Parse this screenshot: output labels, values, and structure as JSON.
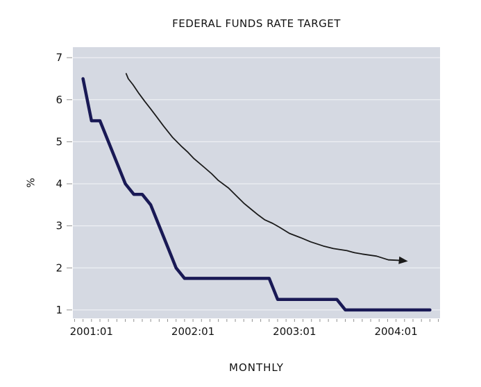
{
  "chart": {
    "title": "FEDERAL FUNDS RATE TARGET",
    "xlabel": "MONTHLY",
    "ylabel": "%"
  },
  "chart_data": {
    "type": "line",
    "title": "FEDERAL FUNDS RATE TARGET",
    "xlabel": "MONTHLY",
    "ylabel": "%",
    "grid": "horizontal-only",
    "legend": "none",
    "plot_bg_color": "#d5d9e2",
    "gridline_color": "#eef0f4",
    "tick_color": "#8f8f8f",
    "ylim": [
      0.8,
      7.25
    ],
    "y_ticks": [
      7,
      6,
      5,
      4,
      3,
      2,
      1
    ],
    "xlim_months_from_2001_01": [
      -2.2,
      41.2
    ],
    "x_minor_tick_every_months": 1,
    "x_tick_labels": [
      {
        "label": "2001:01",
        "month_index": 0
      },
      {
        "label": "2002:01",
        "month_index": 12
      },
      {
        "label": "2003:01",
        "month_index": 24
      },
      {
        "label": "2004:01",
        "month_index": 36
      }
    ],
    "series": [
      {
        "name": "federal-funds-rate-target",
        "style": "thick-step-line",
        "color": "#191955",
        "stroke_width": 4.5,
        "points": [
          {
            "month": "2000:12",
            "value": 6.5
          },
          {
            "month": "2001:01",
            "value": 5.5
          },
          {
            "month": "2001:02",
            "value": 5.5
          },
          {
            "month": "2001:03",
            "value": 5.0
          },
          {
            "month": "2001:04",
            "value": 4.5
          },
          {
            "month": "2001:05",
            "value": 4.0
          },
          {
            "month": "2001:06",
            "value": 3.75
          },
          {
            "month": "2001:07",
            "value": 3.75
          },
          {
            "month": "2001:08",
            "value": 3.5
          },
          {
            "month": "2001:09",
            "value": 3.0
          },
          {
            "month": "2001:10",
            "value": 2.5
          },
          {
            "month": "2001:11",
            "value": 2.0
          },
          {
            "month": "2001:12",
            "value": 1.75
          },
          {
            "month": "2002:01",
            "value": 1.75
          },
          {
            "month": "2002:02",
            "value": 1.75
          },
          {
            "month": "2002:03",
            "value": 1.75
          },
          {
            "month": "2002:04",
            "value": 1.75
          },
          {
            "month": "2002:05",
            "value": 1.75
          },
          {
            "month": "2002:06",
            "value": 1.75
          },
          {
            "month": "2002:07",
            "value": 1.75
          },
          {
            "month": "2002:08",
            "value": 1.75
          },
          {
            "month": "2002:09",
            "value": 1.75
          },
          {
            "month": "2002:10",
            "value": 1.75
          },
          {
            "month": "2002:11",
            "value": 1.25
          },
          {
            "month": "2002:12",
            "value": 1.25
          },
          {
            "month": "2003:01",
            "value": 1.25
          },
          {
            "month": "2003:02",
            "value": 1.25
          },
          {
            "month": "2003:03",
            "value": 1.25
          },
          {
            "month": "2003:04",
            "value": 1.25
          },
          {
            "month": "2003:05",
            "value": 1.25
          },
          {
            "month": "2003:06",
            "value": 1.25
          },
          {
            "month": "2003:07",
            "value": 1.0
          },
          {
            "month": "2003:08",
            "value": 1.0
          },
          {
            "month": "2003:09",
            "value": 1.0
          },
          {
            "month": "2003:10",
            "value": 1.0
          },
          {
            "month": "2003:11",
            "value": 1.0
          },
          {
            "month": "2003:12",
            "value": 1.0
          },
          {
            "month": "2004:01",
            "value": 1.0
          },
          {
            "month": "2004:02",
            "value": 1.0
          },
          {
            "month": "2004:03",
            "value": 1.0
          },
          {
            "month": "2004:04",
            "value": 1.0
          },
          {
            "month": "2004:05",
            "value": 1.0
          }
        ]
      },
      {
        "name": "downward-trend-annotation-arrow",
        "style": "thin-curve-with-arrowhead",
        "color": "#1a1a1a",
        "stroke_width": 1.8,
        "points_month_value": [
          [
            4.1,
            6.62
          ],
          [
            4.35,
            6.5
          ],
          [
            4.9,
            6.36
          ],
          [
            5.6,
            6.15
          ],
          [
            6.3,
            5.96
          ],
          [
            7.0,
            5.78
          ],
          [
            7.6,
            5.62
          ],
          [
            8.5,
            5.38
          ],
          [
            9.6,
            5.1
          ],
          [
            10.7,
            4.88
          ],
          [
            11.4,
            4.75
          ],
          [
            12.1,
            4.6
          ],
          [
            13.4,
            4.38
          ],
          [
            14.2,
            4.24
          ],
          [
            15.0,
            4.08
          ],
          [
            16.2,
            3.9
          ],
          [
            17.1,
            3.72
          ],
          [
            18.0,
            3.54
          ],
          [
            18.9,
            3.39
          ],
          [
            19.7,
            3.26
          ],
          [
            20.5,
            3.14
          ],
          [
            21.4,
            3.06
          ],
          [
            22.2,
            2.97
          ],
          [
            23.4,
            2.82
          ],
          [
            24.7,
            2.72
          ],
          [
            25.9,
            2.62
          ],
          [
            27.4,
            2.52
          ],
          [
            28.6,
            2.46
          ],
          [
            30.2,
            2.41
          ],
          [
            31.1,
            2.36
          ],
          [
            32.0,
            2.33
          ],
          [
            33.7,
            2.28
          ],
          [
            35.1,
            2.19
          ],
          [
            36.2,
            2.18
          ],
          [
            36.9,
            2.17
          ]
        ],
        "arrow_tip_month_value": [
          37.4,
          2.16
        ]
      }
    ]
  }
}
